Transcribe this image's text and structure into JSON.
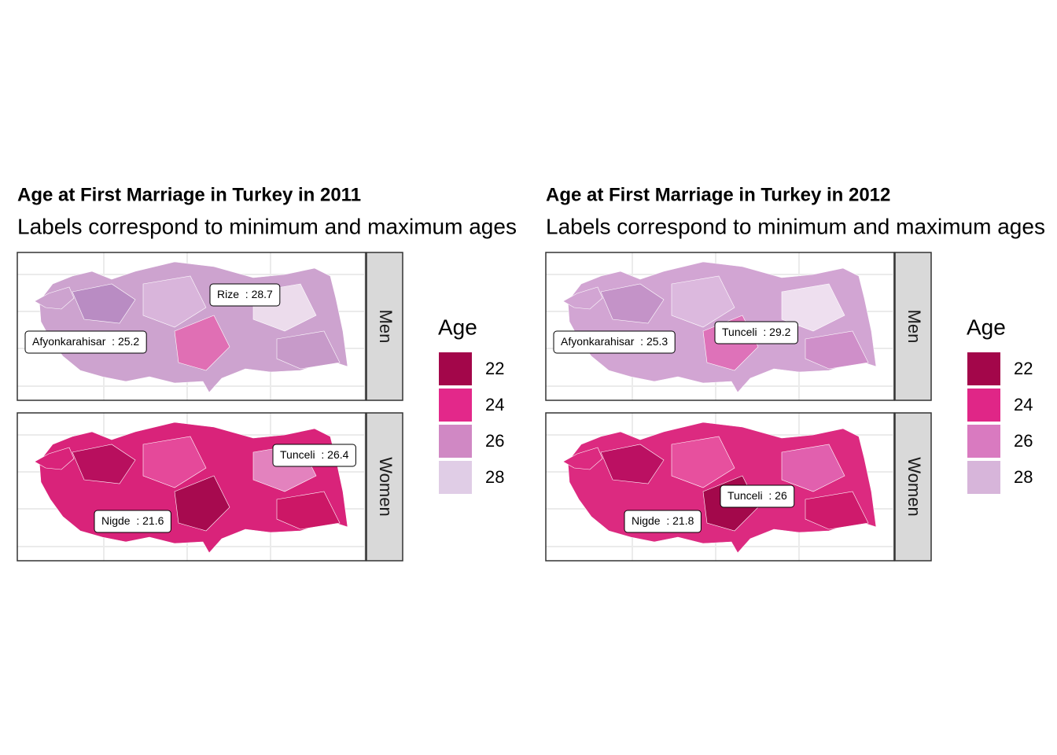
{
  "panels": [
    {
      "title": "Age at First Marriage in Turkey in  2011",
      "subtitle": "Labels correspond to minimum and maximum ages",
      "facets": [
        {
          "strip": "Men",
          "fill": "#cda3cf",
          "regions": [
            "#b98cc3",
            "#d9b5db",
            "#e06fb4",
            "#ecdcec",
            "#c79ac9"
          ],
          "labels": [
            "Afyonkarahisar  : 25.2",
            "Rize  : 28.7"
          ]
        },
        {
          "strip": "Women",
          "fill": "#d9237a",
          "regions": [
            "#b80f5e",
            "#e5499a",
            "#a70a4f",
            "#e382be",
            "#cc1766"
          ],
          "labels": [
            "Tunceli  : 26.4",
            "Nigde  : 21.6"
          ]
        }
      ],
      "legend": {
        "title": "Age",
        "labels": [
          "22",
          "24",
          "26",
          "28"
        ],
        "colors": [
          "#a3064a",
          "#e3288a",
          "#d088c4",
          "#e0cde6"
        ]
      }
    },
    {
      "title": "Age at First Marriage in Turkey in  2012",
      "subtitle": "Labels correspond to minimum and maximum ages",
      "facets": [
        {
          "strip": "Men",
          "fill": "#d2a5d3",
          "regions": [
            "#c493c8",
            "#dcb9de",
            "#de72b9",
            "#eedfef",
            "#cf8fc9"
          ],
          "labels": [
            "Afyonkarahisar  : 25.3",
            "Tunceli  : 29.2"
          ]
        },
        {
          "strip": "Women",
          "fill": "#dc2a80",
          "regions": [
            "#bb1062",
            "#e7509e",
            "#a3084b",
            "#e160ae",
            "#cf1a6c"
          ],
          "labels": [
            "Tunceli  : 26",
            "Nigde  : 21.8"
          ]
        }
      ],
      "legend": {
        "title": "Age",
        "labels": [
          "22",
          "24",
          "26",
          "28"
        ],
        "colors": [
          "#a3064a",
          "#e02687",
          "#d97ac0",
          "#d7b5da"
        ]
      }
    }
  ]
}
